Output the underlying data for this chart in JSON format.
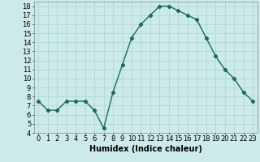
{
  "x": [
    0,
    1,
    2,
    3,
    4,
    5,
    6,
    7,
    8,
    9,
    10,
    11,
    12,
    13,
    14,
    15,
    16,
    17,
    18,
    19,
    20,
    21,
    22,
    23
  ],
  "y": [
    7.5,
    6.5,
    6.5,
    7.5,
    7.5,
    7.5,
    6.5,
    4.5,
    8.5,
    11.5,
    14.5,
    16.0,
    17.0,
    18.0,
    18.0,
    17.5,
    17.0,
    16.5,
    14.5,
    12.5,
    11.0,
    10.0,
    8.5,
    7.5
  ],
  "line_color": "#1a6b5a",
  "marker": "D",
  "marker_size": 2.2,
  "bg_color": "#cceae8",
  "grid_color": "#b0d8d5",
  "xlabel": "Humidex (Indice chaleur)",
  "xlim": [
    -0.5,
    23.5
  ],
  "ylim": [
    4,
    18.5
  ],
  "yticks": [
    4,
    5,
    6,
    7,
    8,
    9,
    10,
    11,
    12,
    13,
    14,
    15,
    16,
    17,
    18
  ],
  "xticks": [
    0,
    1,
    2,
    3,
    4,
    5,
    6,
    7,
    8,
    9,
    10,
    11,
    12,
    13,
    14,
    15,
    16,
    17,
    18,
    19,
    20,
    21,
    22,
    23
  ],
  "xlabel_fontsize": 7,
  "tick_fontsize": 6,
  "linewidth": 1.0
}
